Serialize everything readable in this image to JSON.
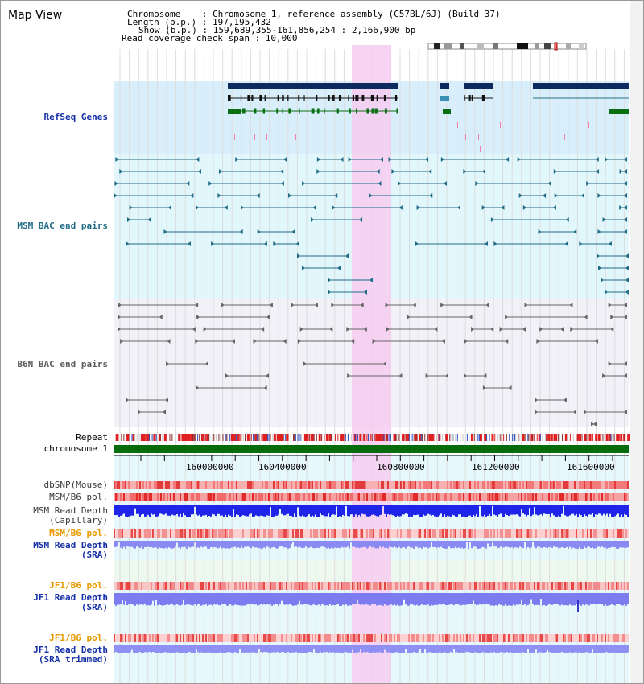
{
  "title": "Map View",
  "info": {
    "line1": "Chromosome    : Chromosome 1, reference assembly (C57BL/6J) (Build 37)",
    "line2": "Length (b.p.) : 197,195,432",
    "line3": "Show (b.p.) : 159,689,355-161,856,254 : 2,166,900 bp",
    "line4": "Read coverage check span : 10,000"
  },
  "tracks": {
    "refseq": "RefSeq Genes",
    "msm_bac": "MSM BAC end pairs",
    "b6n_bac": "B6N BAC end pairs",
    "repeat": "Repeat",
    "chromosome": "chromosome 1",
    "dbsnp": "dbSNP(Mouse)",
    "msm_b6_pol_1": "MSM/B6 pol.",
    "msm_depth_cap_1": "MSM Read Depth",
    "msm_depth_cap_2": "(Capillary)",
    "msm_b6_pol_2": "MSM/B6 pol.",
    "msm_depth_sra_1": "MSM Read Depth",
    "msm_depth_sra_2": "(SRA)",
    "jf1_pol_1": "JF1/B6 pol.",
    "jf1_depth_sra_1": "JF1 Read Depth",
    "jf1_depth_sra_2": "(SRA)",
    "jf1_pol_2": "JF1/B6 pol.",
    "jf1_depth_trim_1": "JF1 Read Depth",
    "jf1_depth_trim_2": "(SRA trimmed)"
  },
  "axis": {
    "ticks": [
      "160000000",
      "160400000",
      "160800000",
      "161200000",
      "161600000"
    ]
  },
  "colors": {
    "refseq_bg": "#d8eefa",
    "msm_bg": "#e2f7fb",
    "b6n_bg": "#f1f1f7",
    "highlight": "#f7cdf1",
    "gene_navy": "#0d2b5e",
    "gene_black": "#111111",
    "gene_green": "#0a6e12",
    "bac_teal": "#1f6b86",
    "bac_grey": "#666666",
    "chromosome_green": "#066b0a",
    "depth_blue": "#1e24e8",
    "depth_light": "#7c7cf0"
  }
}
